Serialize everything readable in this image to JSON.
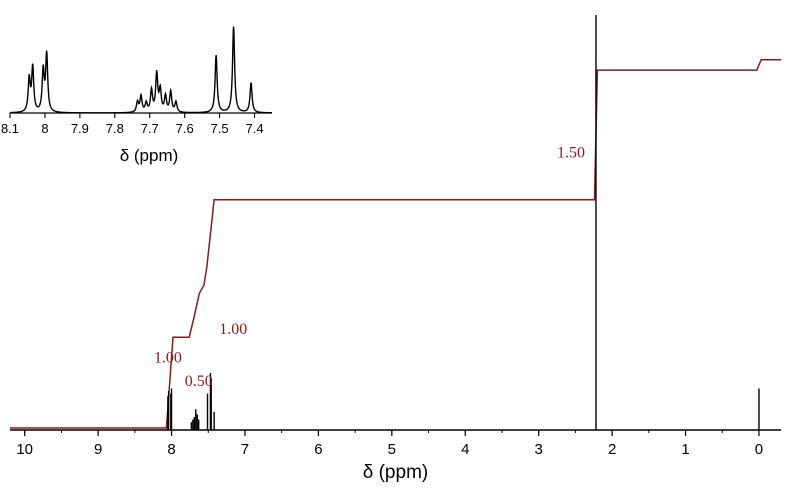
{
  "chart_data": [
    {
      "type": "line",
      "xlabel": "δ (ppm)",
      "xlim": [
        10.2,
        -0.3
      ],
      "x_reversed": true,
      "x_ticks": [
        10,
        9,
        8,
        7,
        6,
        5,
        4,
        3,
        2,
        1,
        0
      ],
      "x_tick_labels": [
        "10",
        "9",
        "8",
        "7",
        "6",
        "5",
        "4",
        "3",
        "2",
        "1",
        "0"
      ],
      "y_axis_visible": false,
      "grid": false,
      "series": [
        {
          "role": "spectrum",
          "color": "#000000",
          "peaks": [
            {
              "ppm": 8.05,
              "height": 0.13
            },
            {
              "ppm": 8.04,
              "height": 0.15
            },
            {
              "ppm": 8.01,
              "height": 0.14
            },
            {
              "ppm": 8.0,
              "height": 0.16
            },
            {
              "ppm": 7.73,
              "height": 0.03
            },
            {
              "ppm": 7.71,
              "height": 0.04
            },
            {
              "ppm": 7.69,
              "height": 0.05
            },
            {
              "ppm": 7.67,
              "height": 0.08
            },
            {
              "ppm": 7.65,
              "height": 0.06
            },
            {
              "ppm": 7.63,
              "height": 0.04
            },
            {
              "ppm": 7.51,
              "height": 0.14
            },
            {
              "ppm": 7.47,
              "height": 0.22
            },
            {
              "ppm": 7.46,
              "height": 0.18
            },
            {
              "ppm": 7.42,
              "height": 0.07
            },
            {
              "ppm": 2.22,
              "height": 1.6
            },
            {
              "ppm": 0.0,
              "height": 0.16
            }
          ]
        },
        {
          "role": "integral",
          "color": "#8b1a1a",
          "points": [
            {
              "x": 10.2,
              "y": 0.0
            },
            {
              "x": 8.07,
              "y": 0.0
            },
            {
              "x": 7.98,
              "y": 0.35
            },
            {
              "x": 7.76,
              "y": 0.35
            },
            {
              "x": 7.7,
              "y": 0.42
            },
            {
              "x": 7.62,
              "y": 0.52
            },
            {
              "x": 7.56,
              "y": 0.55
            },
            {
              "x": 7.52,
              "y": 0.62
            },
            {
              "x": 7.45,
              "y": 0.8
            },
            {
              "x": 7.42,
              "y": 0.88
            },
            {
              "x": 2.24,
              "y": 0.88
            },
            {
              "x": 2.2,
              "y": 1.38
            },
            {
              "x": 0.03,
              "y": 1.38
            },
            {
              "x": -0.03,
              "y": 1.42
            },
            {
              "x": -0.3,
              "y": 1.42
            }
          ]
        }
      ],
      "annotations": [
        {
          "text": "1.00",
          "ppm": 8.05,
          "y": 0.26,
          "color": "#8b1a1a"
        },
        {
          "text": "0.50",
          "ppm": 7.63,
          "y": 0.17,
          "color": "#8b1a1a"
        },
        {
          "text": "1.00",
          "ppm": 7.16,
          "y": 0.37,
          "color": "#8b1a1a"
        },
        {
          "text": "1.50",
          "ppm": 2.56,
          "y": 1.05,
          "color": "#8b1a1a"
        }
      ]
    },
    {
      "type": "line",
      "role": "inset",
      "xlabel": "δ (ppm)",
      "xlim": [
        8.1,
        7.35
      ],
      "x_reversed": true,
      "x_ticks": [
        8.1,
        8.0,
        7.9,
        7.8,
        7.7,
        7.6,
        7.5,
        7.4
      ],
      "x_tick_labels": [
        "8.1",
        "8",
        "7.9",
        "7.8",
        "7.7",
        "7.6",
        "7.5",
        "7.4"
      ],
      "y_axis_visible": false,
      "peaks": [
        {
          "ppm": 8.045,
          "height": 0.58
        },
        {
          "ppm": 8.035,
          "height": 0.78
        },
        {
          "ppm": 8.005,
          "height": 0.72
        },
        {
          "ppm": 7.995,
          "height": 1.0
        },
        {
          "ppm": 7.735,
          "height": 0.18
        },
        {
          "ppm": 7.725,
          "height": 0.28
        },
        {
          "ppm": 7.71,
          "height": 0.16
        },
        {
          "ppm": 7.695,
          "height": 0.38
        },
        {
          "ppm": 7.68,
          "height": 0.67
        },
        {
          "ppm": 7.67,
          "height": 0.38
        },
        {
          "ppm": 7.655,
          "height": 0.28
        },
        {
          "ppm": 7.64,
          "height": 0.36
        },
        {
          "ppm": 7.625,
          "height": 0.18
        },
        {
          "ppm": 7.51,
          "height": 1.0
        },
        {
          "ppm": 7.46,
          "height": 1.5
        },
        {
          "ppm": 7.41,
          "height": 0.52
        }
      ]
    }
  ]
}
